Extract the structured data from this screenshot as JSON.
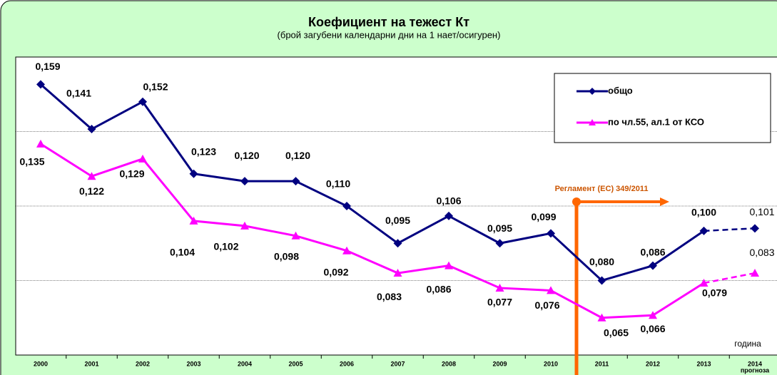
{
  "chart_data": {
    "type": "line",
    "title": "Коефициент на тежест Кт",
    "subtitle": "(брой загубени календарни дни на 1 нает/осигурен)",
    "categories": [
      "2000",
      "2001",
      "2002",
      "2003",
      "2004",
      "2005",
      "2006",
      "2007",
      "2008",
      "2009",
      "2010",
      "2011",
      "2012",
      "2013",
      "2014"
    ],
    "forecast_label": "прогноза",
    "x_axis_label": "година",
    "annotation": "Регламент (ЕС) 349/2011",
    "ylim": [
      0.05,
      0.17
    ],
    "yticks": [
      0.08,
      0.11,
      0.14
    ],
    "grid": true,
    "legend": "top-right",
    "dashed_last_segment": true,
    "series": [
      {
        "name": "общо",
        "color": "#000080",
        "values": [
          0.159,
          0.141,
          0.152,
          0.123,
          0.12,
          0.12,
          0.11,
          0.095,
          0.106,
          0.095,
          0.099,
          0.08,
          0.086,
          0.1,
          0.101
        ],
        "value_labels": [
          "0,159",
          "0,141",
          "0,152",
          "0,123",
          "0,120",
          "0,120",
          "0,110",
          "0,095",
          "0,106",
          "0,095",
          "0,099",
          "0,080",
          "0,086",
          "0,100",
          "0,101"
        ]
      },
      {
        "name": "по чл.55, ал.1 от КСО",
        "color": "#ff00ff",
        "values": [
          0.135,
          0.122,
          0.129,
          0.104,
          0.102,
          0.098,
          0.092,
          0.083,
          0.086,
          0.077,
          0.076,
          0.065,
          0.066,
          0.079,
          0.083
        ],
        "value_labels": [
          "0,135",
          "0,122",
          "0,129",
          "0,104",
          "0,102",
          "0,098",
          "0,092",
          "0,083",
          "0,086",
          "0,077",
          "0,076",
          "0,065",
          "0,066",
          "0,079",
          "0,083"
        ]
      }
    ]
  }
}
